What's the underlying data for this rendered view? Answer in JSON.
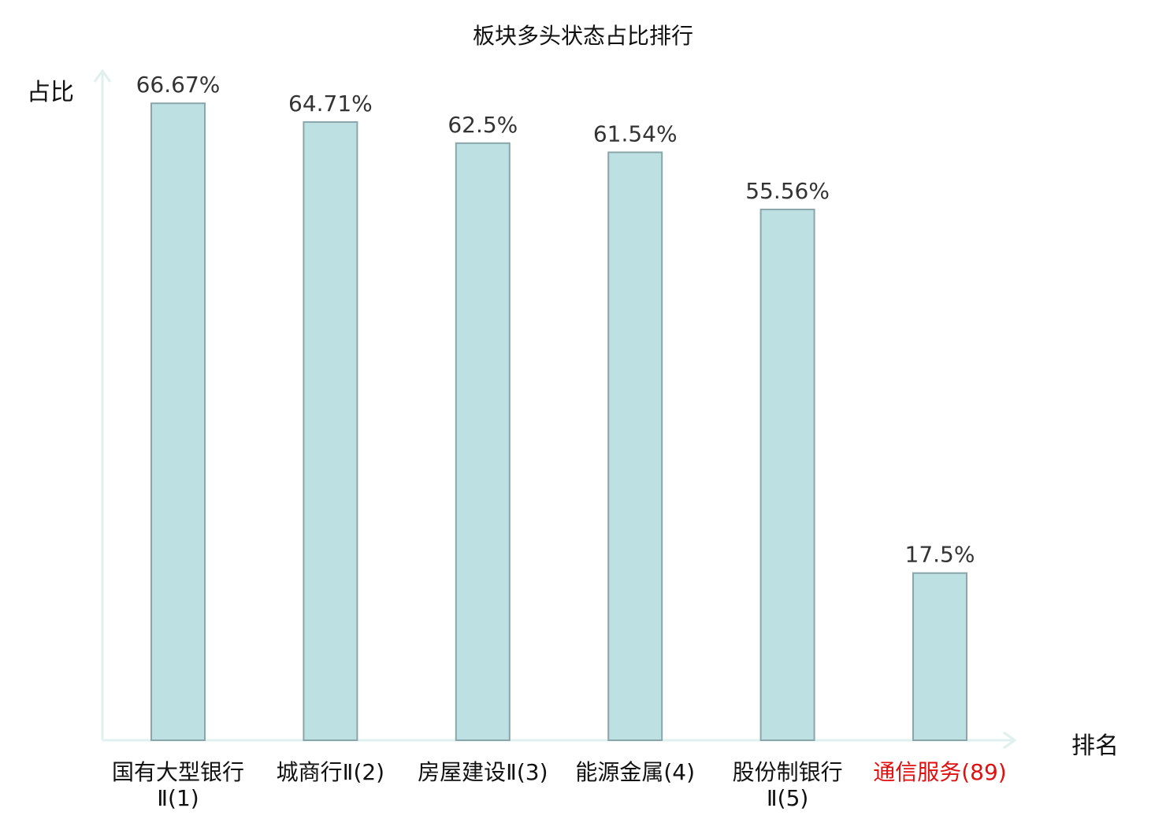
{
  "chart_data": {
    "type": "bar",
    "title": "板块多头状态占比排行",
    "ylabel": "占比",
    "xlabel": "排名",
    "ylim": [
      0,
      70
    ],
    "grid": false,
    "categories": [
      "国有大型银行Ⅱ(1)",
      "城商行Ⅱ(2)",
      "房屋建设Ⅱ(3)",
      "能源金属(4)",
      "股份制银行Ⅱ(5)",
      "通信服务(89)"
    ],
    "values": [
      66.67,
      64.71,
      62.5,
      61.54,
      55.56,
      17.5
    ],
    "value_labels": [
      "66.67%",
      "64.71%",
      "62.5%",
      "61.54%",
      "55.56%",
      "17.5%"
    ],
    "highlight_index": 5
  },
  "colors": {
    "bar_fill": "#bde0e3",
    "bar_stroke": "#8aa6aa",
    "axis": "#dff0ee",
    "highlight_text": "#e01010"
  }
}
